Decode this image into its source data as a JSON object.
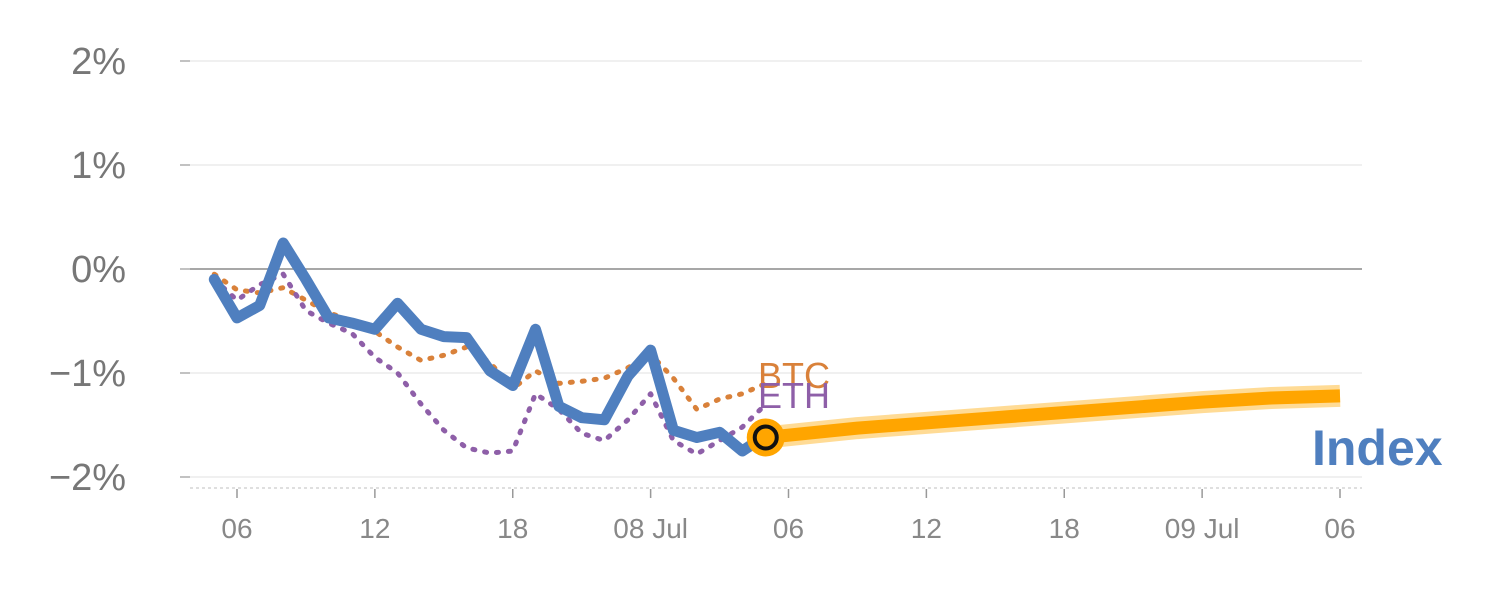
{
  "chart_data": {
    "type": "line",
    "title": "",
    "xlabel": "",
    "ylabel": "",
    "ylim": [
      -2,
      2
    ],
    "xlim": [
      -0.4,
      16.2
    ],
    "y_ticks": [
      {
        "value": 2,
        "label": "2%"
      },
      {
        "value": 1,
        "label": "1%"
      },
      {
        "value": 0,
        "label": "0%"
      },
      {
        "value": -1,
        "label": "−1%"
      },
      {
        "value": -2,
        "label": "−2%"
      }
    ],
    "x_ticks": [
      {
        "value": 0,
        "label": "06"
      },
      {
        "value": 2,
        "label": "12"
      },
      {
        "value": 4,
        "label": "18"
      },
      {
        "value": 6,
        "label": "08 Jul"
      },
      {
        "value": 8,
        "label": "06"
      },
      {
        "value": 10,
        "label": "12"
      },
      {
        "value": 12,
        "label": "18"
      },
      {
        "value": 14,
        "label": "09 Jul"
      },
      {
        "value": 16,
        "label": "06"
      }
    ],
    "series": [
      {
        "name": "BTC",
        "style": "dotted",
        "color": "#d9813a",
        "points": [
          [
            -0.33,
            -0.05
          ],
          [
            0,
            -0.2
          ],
          [
            0.33,
            -0.23
          ],
          [
            0.67,
            -0.18
          ],
          [
            1,
            -0.3
          ],
          [
            1.33,
            -0.42
          ],
          [
            1.67,
            -0.5
          ],
          [
            2,
            -0.6
          ],
          [
            2.33,
            -0.75
          ],
          [
            2.67,
            -0.88
          ],
          [
            3,
            -0.83
          ],
          [
            3.33,
            -0.75
          ],
          [
            3.67,
            -0.9
          ],
          [
            4,
            -1.15
          ],
          [
            4.33,
            -0.98
          ],
          [
            4.67,
            -1.1
          ],
          [
            5,
            -1.08
          ],
          [
            5.33,
            -1.05
          ],
          [
            5.67,
            -0.95
          ],
          [
            6,
            -0.82
          ],
          [
            6.33,
            -1.05
          ],
          [
            6.67,
            -1.35
          ],
          [
            7,
            -1.25
          ],
          [
            7.33,
            -1.2
          ],
          [
            7.67,
            -1.1
          ]
        ]
      },
      {
        "name": "ETH",
        "style": "dotted",
        "color": "#8e5fa8",
        "points": [
          [
            -0.33,
            -0.1
          ],
          [
            0,
            -0.3
          ],
          [
            0.33,
            -0.15
          ],
          [
            0.67,
            -0.05
          ],
          [
            1,
            -0.4
          ],
          [
            1.33,
            -0.52
          ],
          [
            1.67,
            -0.62
          ],
          [
            2,
            -0.85
          ],
          [
            2.33,
            -1.0
          ],
          [
            2.67,
            -1.3
          ],
          [
            3,
            -1.55
          ],
          [
            3.33,
            -1.72
          ],
          [
            3.67,
            -1.77
          ],
          [
            4,
            -1.75
          ],
          [
            4.33,
            -1.2
          ],
          [
            4.67,
            -1.35
          ],
          [
            5,
            -1.58
          ],
          [
            5.33,
            -1.65
          ],
          [
            5.67,
            -1.45
          ],
          [
            6,
            -1.2
          ],
          [
            6.33,
            -1.65
          ],
          [
            6.67,
            -1.78
          ],
          [
            7,
            -1.65
          ],
          [
            7.33,
            -1.52
          ],
          [
            7.67,
            -1.3
          ]
        ]
      },
      {
        "name": "Index",
        "style": "solid",
        "color": "#4f7fbf",
        "points": [
          [
            -0.33,
            -0.1
          ],
          [
            0,
            -0.47
          ],
          [
            0.33,
            -0.35
          ],
          [
            0.67,
            0.25
          ],
          [
            1,
            -0.1
          ],
          [
            1.33,
            -0.47
          ],
          [
            1.67,
            -0.52
          ],
          [
            2,
            -0.58
          ],
          [
            2.33,
            -0.33
          ],
          [
            2.67,
            -0.58
          ],
          [
            3,
            -0.65
          ],
          [
            3.33,
            -0.66
          ],
          [
            3.67,
            -0.98
          ],
          [
            4,
            -1.12
          ],
          [
            4.33,
            -0.58
          ],
          [
            4.67,
            -1.32
          ],
          [
            5,
            -1.43
          ],
          [
            5.33,
            -1.45
          ],
          [
            5.67,
            -1.03
          ],
          [
            6,
            -0.78
          ],
          [
            6.33,
            -1.55
          ],
          [
            6.67,
            -1.62
          ],
          [
            7,
            -1.57
          ],
          [
            7.33,
            -1.75
          ],
          [
            7.67,
            -1.6
          ]
        ]
      },
      {
        "name": "Index projection",
        "style": "highlight",
        "color": "#ffa500",
        "points": [
          [
            7.67,
            -1.62
          ],
          [
            9,
            -1.53
          ],
          [
            11,
            -1.43
          ],
          [
            13,
            -1.33
          ],
          [
            14,
            -1.28
          ],
          [
            15,
            -1.24
          ],
          [
            16,
            -1.22
          ]
        ]
      }
    ],
    "labels": {
      "btc": "BTC",
      "eth": "ETH",
      "index": "Index"
    },
    "marker": {
      "x": 7.67,
      "y": -1.62
    }
  }
}
